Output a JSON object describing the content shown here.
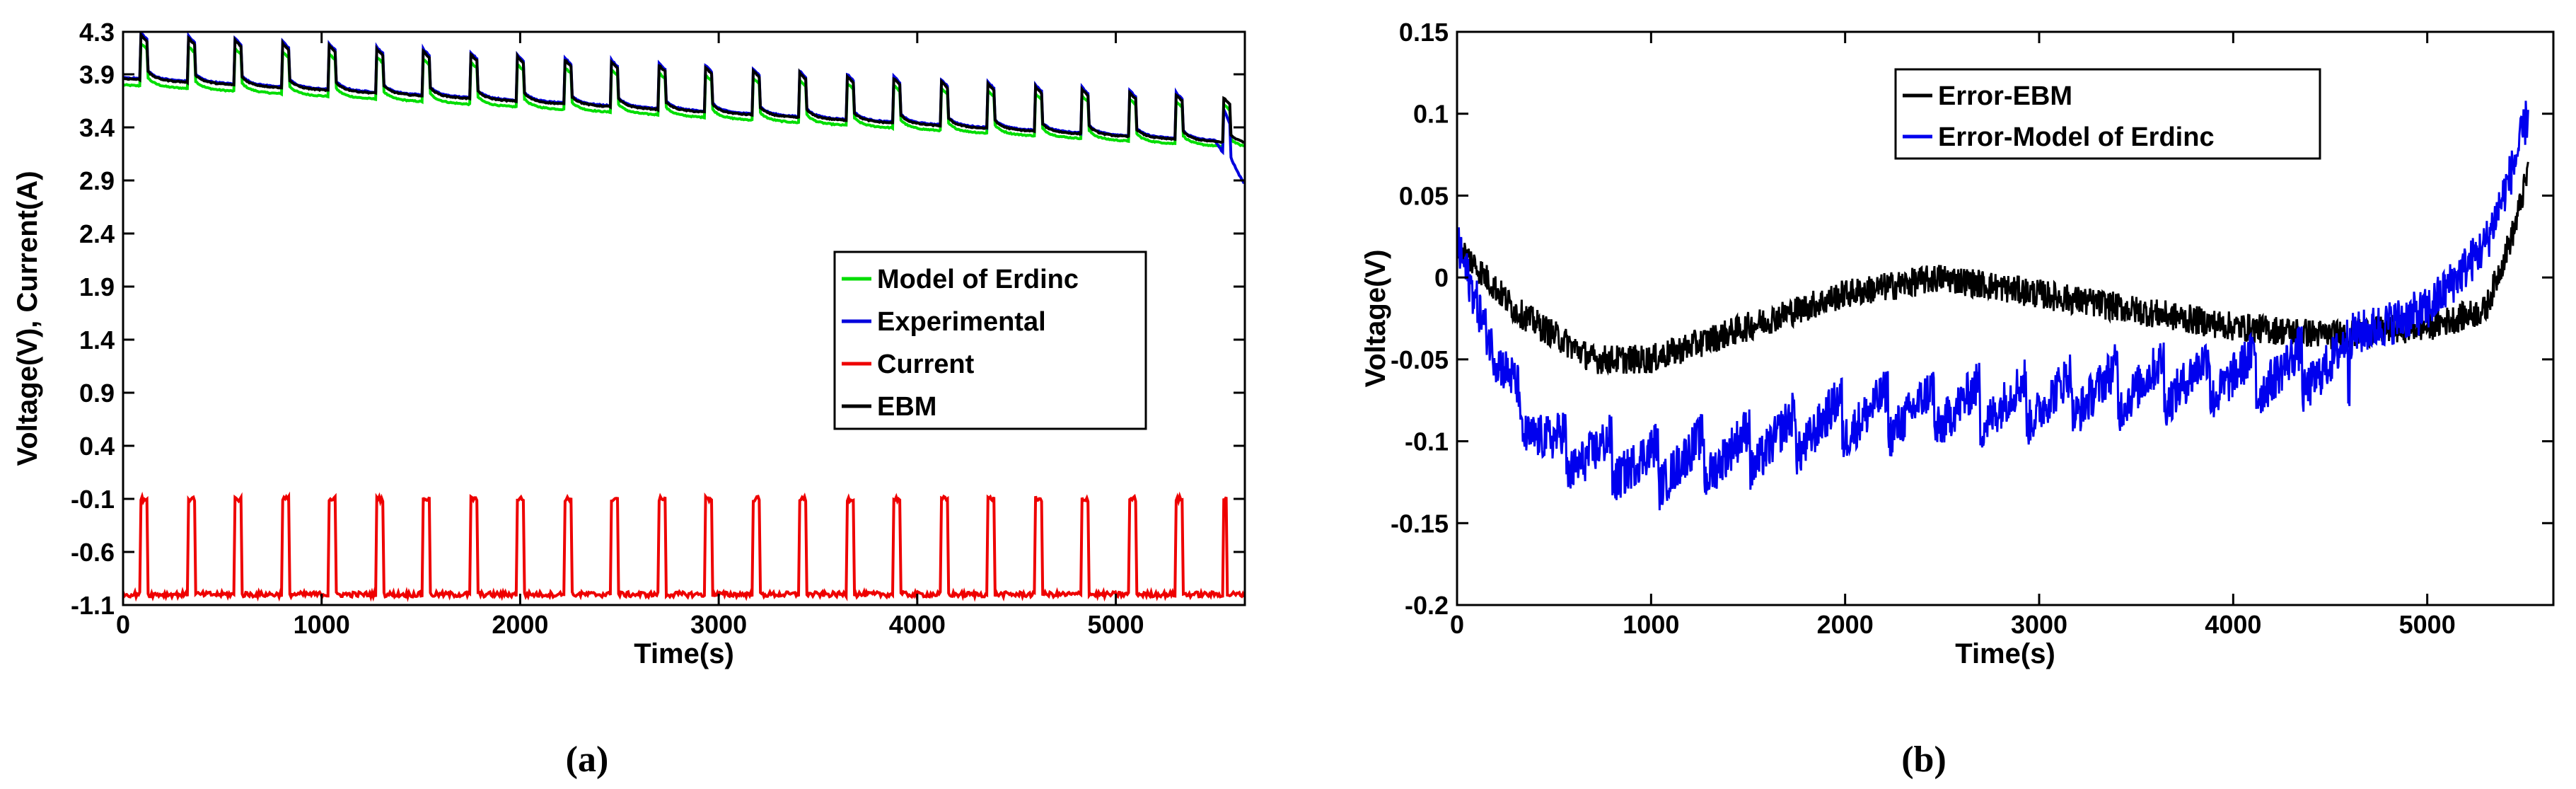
{
  "chart_data": [
    {
      "panel": "a",
      "caption": "(a)",
      "type": "line",
      "xlabel": "Time(s)",
      "ylabel": "Voltage(V), Current(A)",
      "xlim": [
        0,
        5650
      ],
      "ylim": [
        -1.1,
        4.3
      ],
      "xticks": [
        0,
        1000,
        2000,
        3000,
        4000,
        5000
      ],
      "xtick_labels": [
        "0",
        "1000",
        "2000",
        "3000",
        "4000",
        "5000"
      ],
      "yticks": [
        4.3,
        3.9,
        3.4,
        2.9,
        2.4,
        1.9,
        1.4,
        0.9,
        0.4,
        -0.1,
        -0.6,
        -1.1
      ],
      "ytick_labels": [
        "4.3",
        "3.9",
        "3.4",
        "2.9",
        "2.4",
        "1.9",
        "1.4",
        "0.9",
        "0.4",
        "-0.1",
        "-0.6",
        "-1.1"
      ],
      "legend_position": "center-right",
      "pulse_period_s": 237,
      "pulse_start_s": 90,
      "pulse_width_s": 35,
      "series": [
        {
          "name": "Model of Erdinc",
          "color": "#00dd00",
          "rest_voltage_start": 3.8,
          "rest_voltage_end": 3.22,
          "pulse_rise": 0.4
        },
        {
          "name": "Experimental",
          "color": "#0000dd",
          "rest_voltage_start": 3.87,
          "rest_voltage_end": 3.27,
          "pulse_rise": 0.43,
          "tail_end_voltage": 2.85
        },
        {
          "name": "Current",
          "color": "#ee0000",
          "low_value": -1.0,
          "high_value": -0.1
        },
        {
          "name": "EBM",
          "color": "#000000",
          "rest_voltage_start": 3.86,
          "rest_voltage_end": 3.26,
          "pulse_rise": 0.42
        }
      ]
    },
    {
      "panel": "b",
      "caption": "(b)",
      "type": "line",
      "xlabel": "Time(s)",
      "ylabel": "Voltage(V)",
      "xlim": [
        0,
        5650
      ],
      "ylim": [
        -0.2,
        0.15
      ],
      "xticks": [
        0,
        1000,
        2000,
        3000,
        4000,
        5000
      ],
      "xtick_labels": [
        "0",
        "1000",
        "2000",
        "3000",
        "4000",
        "5000"
      ],
      "yticks": [
        0.15,
        0.1,
        0.05,
        0,
        -0.05,
        -0.1,
        -0.15,
        -0.2
      ],
      "ytick_labels": [
        "0.15",
        "0.1",
        "0.05",
        "0",
        "-0.05",
        "-0.1",
        "-0.15",
        "-0.2"
      ],
      "legend_position": "top-center",
      "series": [
        {
          "name": "Error-EBM",
          "color": "#000000",
          "trend": [
            [
              0,
              0.02
            ],
            [
              300,
              -0.02
            ],
            [
              700,
              -0.05
            ],
            [
              1000,
              -0.05
            ],
            [
              1500,
              -0.03
            ],
            [
              2000,
              -0.01
            ],
            [
              2500,
              0.0
            ],
            [
              3000,
              -0.01
            ],
            [
              3500,
              -0.02
            ],
            [
              4000,
              -0.03
            ],
            [
              4500,
              -0.035
            ],
            [
              5000,
              -0.03
            ],
            [
              5300,
              -0.02
            ],
            [
              5450,
              0.03
            ],
            [
              5520,
              0.065
            ]
          ]
        },
        {
          "name": "Error-Model of Erdinc",
          "color": "#0000ee",
          "trend": [
            [
              0,
              0.02
            ],
            [
              200,
              -0.05
            ],
            [
              500,
              -0.09
            ],
            [
              1000,
              -0.1
            ],
            [
              1500,
              -0.09
            ],
            [
              2000,
              -0.07
            ],
            [
              2500,
              -0.065
            ],
            [
              3000,
              -0.06
            ],
            [
              3500,
              -0.05
            ],
            [
              4000,
              -0.045
            ],
            [
              4500,
              -0.04
            ],
            [
              5000,
              -0.02
            ],
            [
              5300,
              0.02
            ],
            [
              5450,
              0.07
            ],
            [
              5520,
              0.1
            ]
          ]
        }
      ]
    }
  ]
}
